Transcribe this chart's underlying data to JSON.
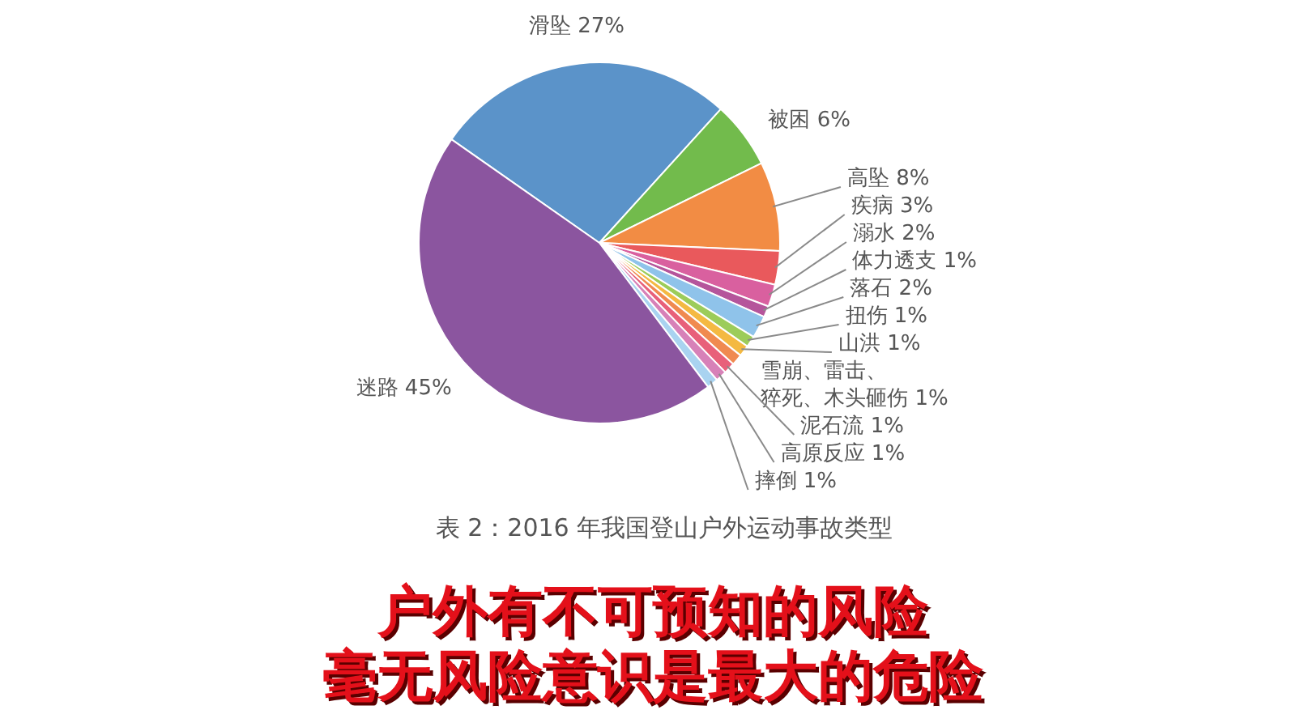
{
  "chart_data": {
    "type": "pie",
    "title": "表 2：2016 年我国登山户外运动事故类型",
    "categories": [
      "滑坠",
      "被困",
      "高坠",
      "疾病",
      "溺水",
      "体力透支",
      "落石",
      "扭伤",
      "山洪",
      "雪崩、雷击、猝死、木头砸伤",
      "泥石流",
      "高原反应",
      "摔倒",
      "迷路"
    ],
    "values": [
      27,
      6,
      8,
      3,
      2,
      1,
      2,
      1,
      1,
      1,
      1,
      1,
      1,
      45
    ],
    "value_labels": [
      "27%",
      "6%",
      "8%",
      "3%",
      "2%",
      "1%",
      "2%",
      "1%",
      "1%",
      "1%",
      "1%",
      "1%",
      "1%",
      "45%"
    ],
    "colors": [
      "#5b93c9",
      "#72bb4c",
      "#f28c44",
      "#e9595c",
      "#d9609f",
      "#b5559b",
      "#8fc3ea",
      "#9ccc5a",
      "#f4b942",
      "#f08a50",
      "#e8607a",
      "#d781b8",
      "#a9d3f0",
      "#8b559f"
    ],
    "annotations": [
      "户外有不可预知的风险",
      "毫无风险意识是最大的危险"
    ]
  }
}
